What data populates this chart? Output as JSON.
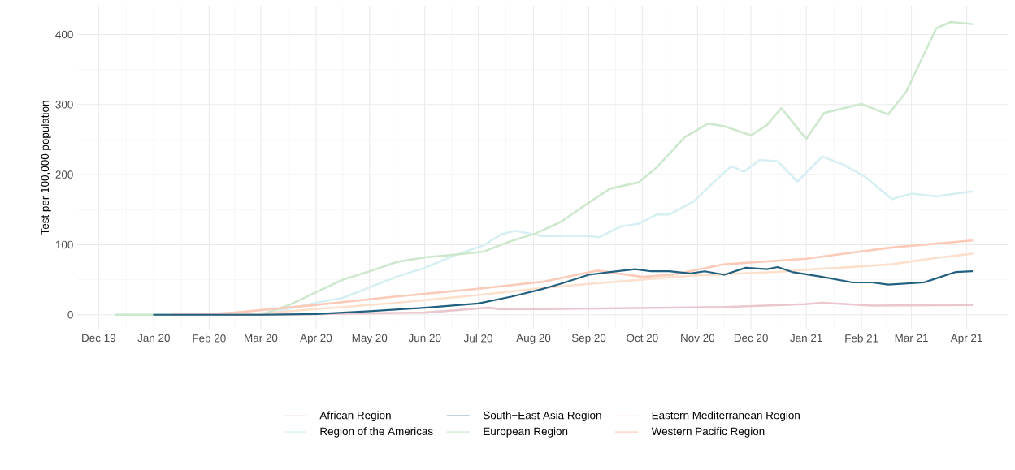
{
  "chart_data": {
    "type": "line",
    "ylabel": "Test per 100,000 population",
    "xlim": [
      "2019-11-19",
      "2021-04-24"
    ],
    "ylim": [
      -20,
      440
    ],
    "xticks": [
      {
        "value": "2019-12-01",
        "label": "Dec 19"
      },
      {
        "value": "2020-01-01",
        "label": "Jan 20"
      },
      {
        "value": "2020-02-01",
        "label": "Feb 20"
      },
      {
        "value": "2020-03-01",
        "label": "Mar 20"
      },
      {
        "value": "2020-04-01",
        "label": "Apr 20"
      },
      {
        "value": "2020-05-01",
        "label": "May 20"
      },
      {
        "value": "2020-06-01",
        "label": "Jun 20"
      },
      {
        "value": "2020-07-01",
        "label": "Jul 20"
      },
      {
        "value": "2020-08-01",
        "label": "Aug 20"
      },
      {
        "value": "2020-09-01",
        "label": "Sep 20"
      },
      {
        "value": "2020-10-01",
        "label": "Oct 20"
      },
      {
        "value": "2020-11-01",
        "label": "Nov 20"
      },
      {
        "value": "2020-12-01",
        "label": "Dec 20"
      },
      {
        "value": "2021-01-01",
        "label": "Jan 21"
      },
      {
        "value": "2021-02-01",
        "label": "Feb 21"
      },
      {
        "value": "2021-03-01",
        "label": "Mar 21"
      },
      {
        "value": "2021-04-01",
        "label": "Apr 21"
      }
    ],
    "yticks": [
      0,
      100,
      200,
      300,
      400
    ],
    "grid": true,
    "legend": "bottom",
    "line_style": "solid",
    "series": [
      {
        "name": "African Region",
        "color": "#ebc6cc",
        "x": [
          "2020-01-11",
          "2020-03-01",
          "2020-04-01",
          "2020-06-01",
          "2020-07-01",
          "2020-07-07",
          "2020-07-13",
          "2020-08-04",
          "2020-11-16",
          "2020-12-31",
          "2021-01-10",
          "2021-02-07",
          "2021-04-04"
        ],
        "values": [
          0,
          0,
          1,
          3,
          9,
          10,
          8,
          8,
          11,
          15,
          17,
          13,
          14
        ]
      },
      {
        "name": "South−East Asia Region",
        "color": "#22607f",
        "x": [
          "2020-01-01",
          "2020-03-01",
          "2020-04-01",
          "2020-05-01",
          "2020-06-01",
          "2020-07-01",
          "2020-07-20",
          "2020-08-05",
          "2020-08-16",
          "2020-09-01",
          "2020-09-13",
          "2020-09-27",
          "2020-10-06",
          "2020-10-16",
          "2020-10-28",
          "2020-11-05",
          "2020-11-16",
          "2020-11-28",
          "2020-12-10",
          "2020-12-16",
          "2020-12-24",
          "2021-01-10",
          "2021-01-27",
          "2021-02-07",
          "2021-02-16",
          "2021-03-08",
          "2021-03-15",
          "2021-03-26",
          "2021-04-04"
        ],
        "values": [
          0,
          0,
          1,
          5,
          10,
          16,
          26,
          36,
          44,
          57,
          61,
          65,
          62,
          62,
          59,
          62,
          57,
          67,
          65,
          68,
          61,
          54,
          46,
          46,
          43,
          46,
          52,
          61,
          62
        ]
      },
      {
        "name": "Eastern Mediterranean Region",
        "color": "#fde0cc",
        "x": [
          "2020-02-01",
          "2020-03-01",
          "2020-04-16",
          "2020-05-16",
          "2020-07-01",
          "2020-08-02",
          "2020-09-01",
          "2020-10-01",
          "2020-10-30",
          "2020-12-16",
          "2021-01-11",
          "2021-01-20",
          "2021-02-18",
          "2021-03-01",
          "2021-03-15",
          "2021-04-04"
        ],
        "values": [
          0,
          2,
          11,
          17,
          28,
          37,
          44,
          50,
          56,
          61,
          66,
          67,
          72,
          76,
          81,
          87
        ]
      },
      {
        "name": "Region of the Americas",
        "color": "#d6eff3",
        "x": [
          "2019-12-11",
          "2020-03-01",
          "2020-04-01",
          "2020-04-16",
          "2020-05-01",
          "2020-05-16",
          "2020-06-01",
          "2020-06-19",
          "2020-07-04",
          "2020-07-14",
          "2020-07-22",
          "2020-08-06",
          "2020-08-27",
          "2020-09-07",
          "2020-09-19",
          "2020-09-29",
          "2020-10-09",
          "2020-10-16",
          "2020-10-30",
          "2020-11-10",
          "2020-11-20",
          "2020-11-27",
          "2020-12-06",
          "2020-12-16",
          "2020-12-27",
          "2021-01-10",
          "2021-01-22",
          "2021-02-03",
          "2021-02-18",
          "2021-03-01",
          "2021-03-15",
          "2021-04-04"
        ],
        "values": [
          0,
          0,
          17,
          24,
          39,
          54,
          67,
          86,
          99,
          115,
          120,
          112,
          113,
          111,
          126,
          130,
          143,
          143,
          162,
          189,
          212,
          204,
          221,
          219,
          190,
          226,
          214,
          197,
          165,
          173,
          169,
          176
        ]
      },
      {
        "name": "European Region",
        "color": "#cde8cd",
        "x": [
          "2019-12-11",
          "2020-03-01",
          "2020-03-17",
          "2020-04-01",
          "2020-04-16",
          "2020-05-01",
          "2020-05-16",
          "2020-06-01",
          "2020-06-19",
          "2020-07-04",
          "2020-07-17",
          "2020-08-02",
          "2020-08-16",
          "2020-09-01",
          "2020-09-13",
          "2020-09-29",
          "2020-10-09",
          "2020-10-25",
          "2020-11-07",
          "2020-11-16",
          "2020-12-01",
          "2020-12-10",
          "2020-12-18",
          "2021-01-01",
          "2021-01-11",
          "2021-02-01",
          "2021-02-16",
          "2021-02-26",
          "2021-03-15",
          "2021-03-23",
          "2021-04-04"
        ],
        "values": [
          0,
          0,
          14,
          32,
          50,
          62,
          75,
          82,
          86,
          90,
          103,
          116,
          132,
          160,
          180,
          189,
          210,
          254,
          273,
          269,
          256,
          271,
          295,
          251,
          288,
          301,
          286,
          318,
          409,
          418,
          415
        ]
      },
      {
        "name": "Western Pacific Region",
        "color": "#fbcab8",
        "x": [
          "2020-01-11",
          "2020-01-26",
          "2020-02-15",
          "2020-04-01",
          "2020-05-16",
          "2020-07-01",
          "2020-08-06",
          "2020-08-16",
          "2020-09-06",
          "2020-10-01",
          "2020-10-18",
          "2020-11-16",
          "2021-01-01",
          "2021-02-18",
          "2021-04-04"
        ],
        "values": [
          0,
          0,
          3,
          14,
          26,
          37,
          47,
          52,
          63,
          54,
          57,
          72,
          80,
          96,
          106
        ]
      }
    ]
  }
}
